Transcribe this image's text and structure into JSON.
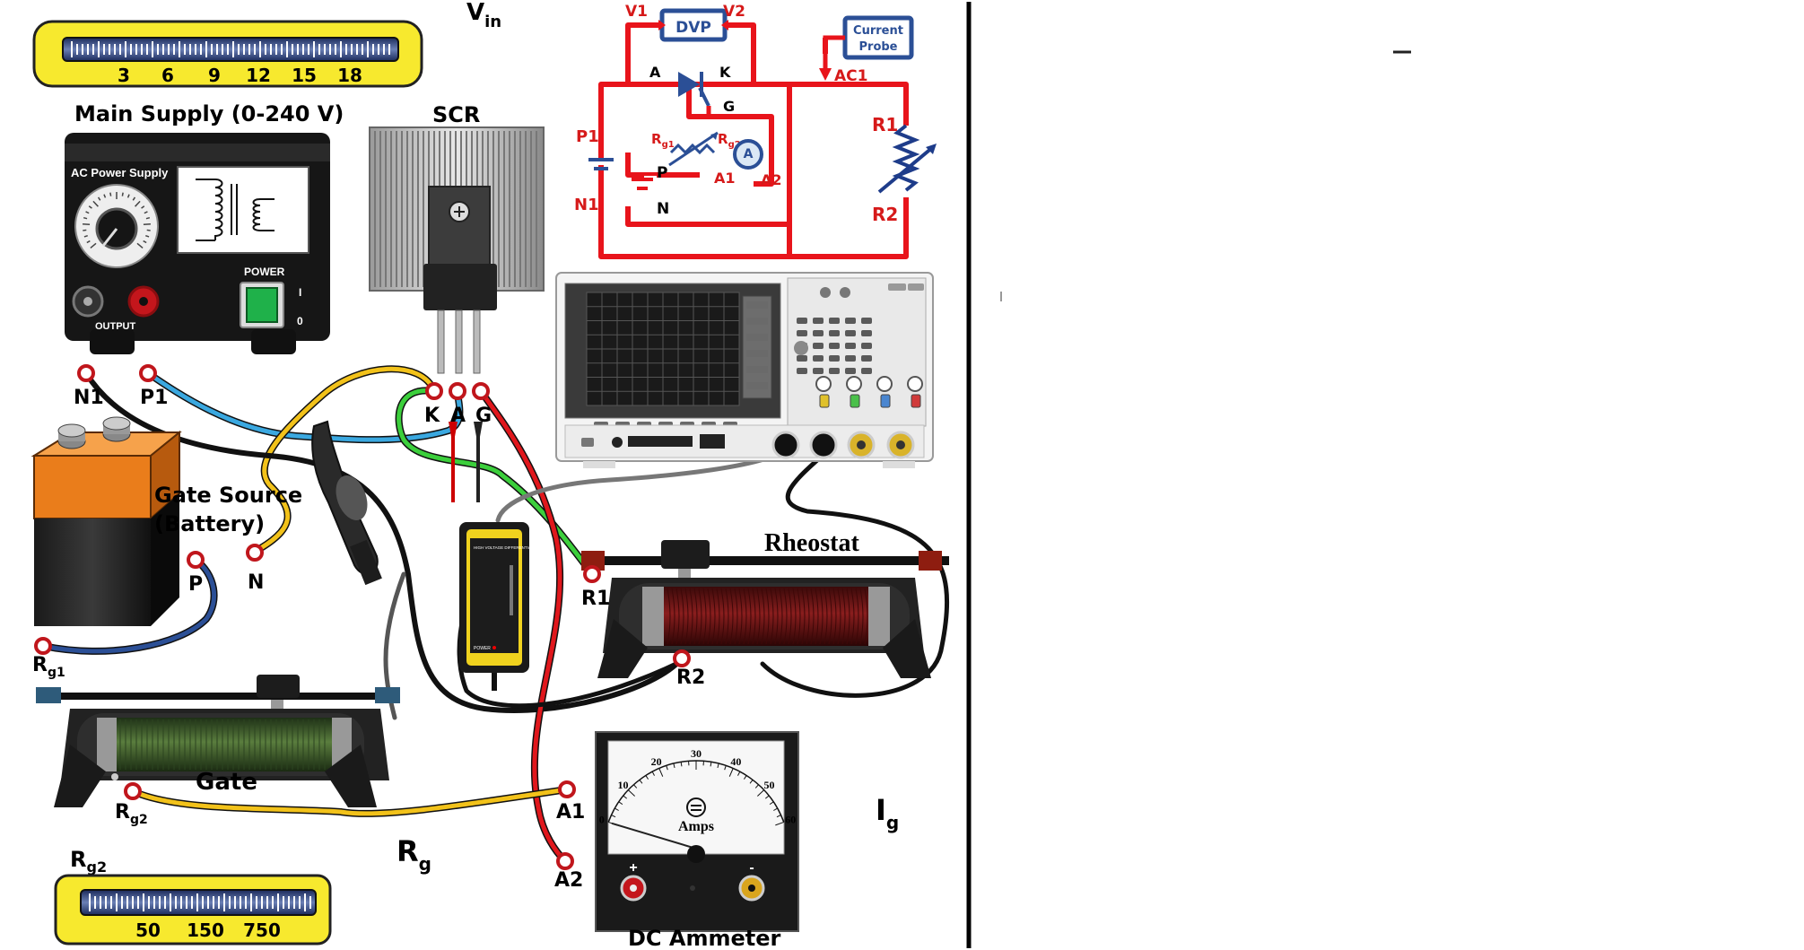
{
  "vin": {
    "main": "V",
    "sub": "in"
  },
  "supply_scale": {
    "ticks": [
      "3",
      "6",
      "9",
      "12",
      "15",
      "18"
    ]
  },
  "main_supply": {
    "title": "Main Supply (0-240 V)",
    "panel_label": "AC Power Supply",
    "power_label": "POWER",
    "output_label": "OUTPUT",
    "switch_on": "I",
    "switch_off": "0"
  },
  "scr": {
    "title": "SCR",
    "pins": [
      "K",
      "A",
      "G"
    ]
  },
  "terminals": {
    "n1": "N1",
    "p1": "P1",
    "p": "P",
    "n": "N",
    "r1": "R1",
    "r2": "R2",
    "a1": "A1",
    "a2": "A2"
  },
  "gate_source": {
    "line1": "Gate Source",
    "line2": "(Battery)"
  },
  "rg1": {
    "main": "R",
    "sub": "g1"
  },
  "rg2": {
    "main": "R",
    "sub": "g2"
  },
  "gate_rheostat": {
    "label": "Gate"
  },
  "rheostat": {
    "label": "Rheostat"
  },
  "rg_big": {
    "main": "R",
    "sub": "g"
  },
  "ig_big": {
    "main": "I",
    "sub": "g"
  },
  "gate_scale": {
    "caption_main": "R",
    "caption_sub": "g2",
    "ticks": [
      "50",
      "150",
      "750"
    ]
  },
  "ammeter": {
    "title": "DC Ammeter",
    "unit": "Amps",
    "scale": [
      "0",
      "10",
      "20",
      "30",
      "40",
      "50",
      "60"
    ],
    "plus": "+",
    "minus": "-",
    "needle_value": 0
  },
  "probe": {
    "title": "HIGH VOLTAGE DIFFERENTIAL PROBE",
    "power_label": "POWER"
  },
  "schematic": {
    "dvp": "DVP",
    "v1": "V1",
    "v2": "V2",
    "current_probe_line1": "Current",
    "current_probe_line2": "Probe",
    "ac1": "AC1",
    "anode": "A",
    "cathode": "K",
    "gate": "G",
    "p1": "P1",
    "n1": "N1",
    "p": "P",
    "n": "N",
    "rg1": {
      "main": "R",
      "sub": "g1"
    },
    "rg2": {
      "main": "R",
      "sub": "g2"
    },
    "a1": "A1",
    "a2": "A2",
    "ammeter_symbol": "A",
    "r1": "R1",
    "r2": "R2"
  },
  "colors": {
    "schematic_wire": "#e8141b",
    "label_red": "#d61a1a",
    "box_blue": "#2b4f96",
    "scale_yellow": "#f7e92e",
    "rheostat_coil": "#6b1414",
    "gate_coil": "#3d5a2a",
    "wire_blue": "#3aa8e0",
    "wire_yellow": "#f2c21a",
    "wire_green": "#3ccf3c",
    "wire_red": "#e0171c"
  }
}
